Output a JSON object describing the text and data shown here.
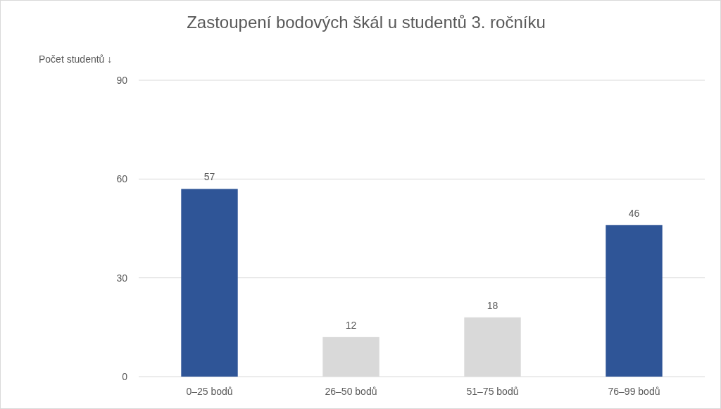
{
  "chart_data": {
    "type": "bar",
    "title": "Zastoupení bodových škál u studentů 3. ročníku",
    "ylabel": "Počet studentů ↓",
    "categories": [
      "0–25 bodů",
      "26–50 bodů",
      "51–75 bodů",
      "76–99 bodů"
    ],
    "values": [
      57,
      12,
      18,
      46
    ],
    "colors": [
      "#2f5597",
      "#d9d9d9",
      "#d9d9d9",
      "#2f5597"
    ],
    "ylim": [
      0,
      90
    ],
    "yticks": [
      0,
      30,
      60,
      90
    ],
    "grid": "y",
    "data_labels": true
  }
}
